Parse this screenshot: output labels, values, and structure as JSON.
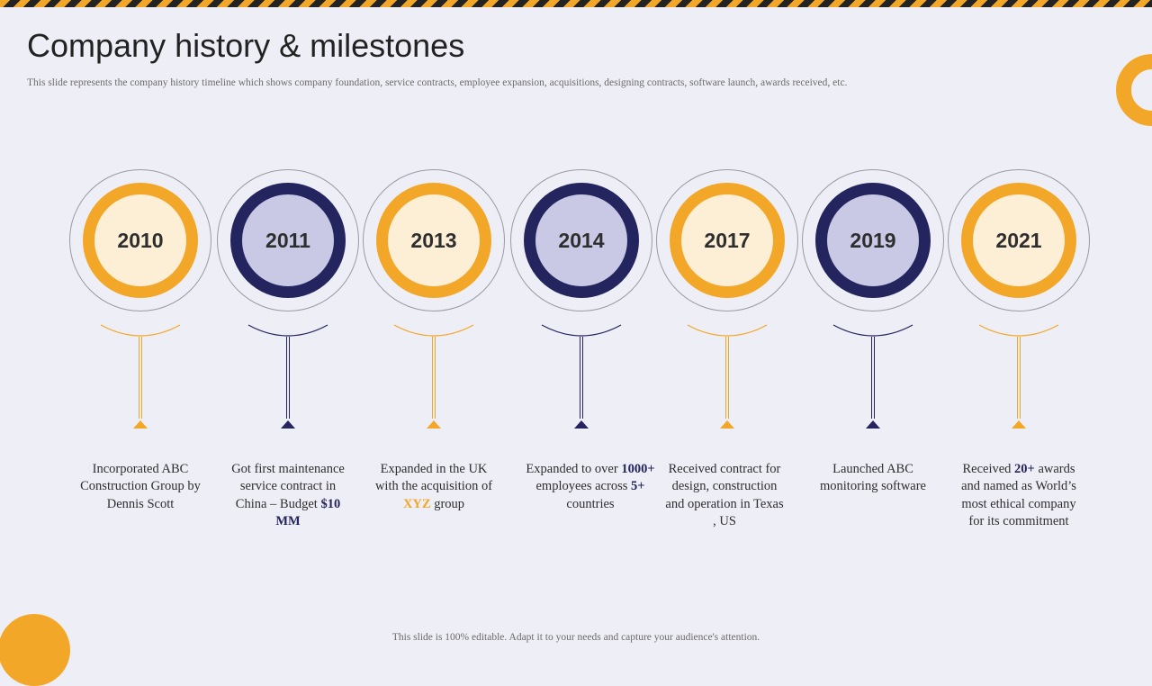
{
  "header": {
    "title": "Company history & milestones",
    "subtitle": "This slide represents the company history timeline  which shows company foundation, service contracts, employee  expansion, acquisitions, designing contracts, software launch, awards received, etc."
  },
  "footer": {
    "note": "This slide is 100% editable.  Adapt it to your needs and capture your audience's  attention."
  },
  "colors": {
    "orange": "#F3A729",
    "navy": "#24245E",
    "background": "#EEEEF6"
  },
  "milestones": [
    {
      "year": "2010",
      "color": "orange",
      "desc_1": "Incorporated ABC Construction Group by Dennis  Scott"
    },
    {
      "year": "2011",
      "color": "navy",
      "desc_1": "Got first  maintenance service contract in China – Budget ",
      "hl_1": "$10 MM"
    },
    {
      "year": "2013",
      "color": "orange",
      "desc_1": "Expanded in the UK with the acquisition  of ",
      "hl_1": "XYZ",
      "desc_2": " group"
    },
    {
      "year": "2014",
      "color": "navy",
      "desc_1": "Expanded to over ",
      "hl_1": "1000+",
      "desc_2": " employees across ",
      "hl_2": "5+",
      "desc_3": " countries"
    },
    {
      "year": "2017",
      "color": "orange",
      "desc_1": "Received  contract for design, construction  and operation  in Texas  , US"
    },
    {
      "year": "2019",
      "color": "navy",
      "desc_1": "Launched ABC monitoring  software"
    },
    {
      "year": "2021",
      "color": "orange",
      "desc_1": "Received ",
      "hl_1": "20+",
      "desc_2": " awards and named as World’s most ethical  company for its commitment"
    }
  ]
}
